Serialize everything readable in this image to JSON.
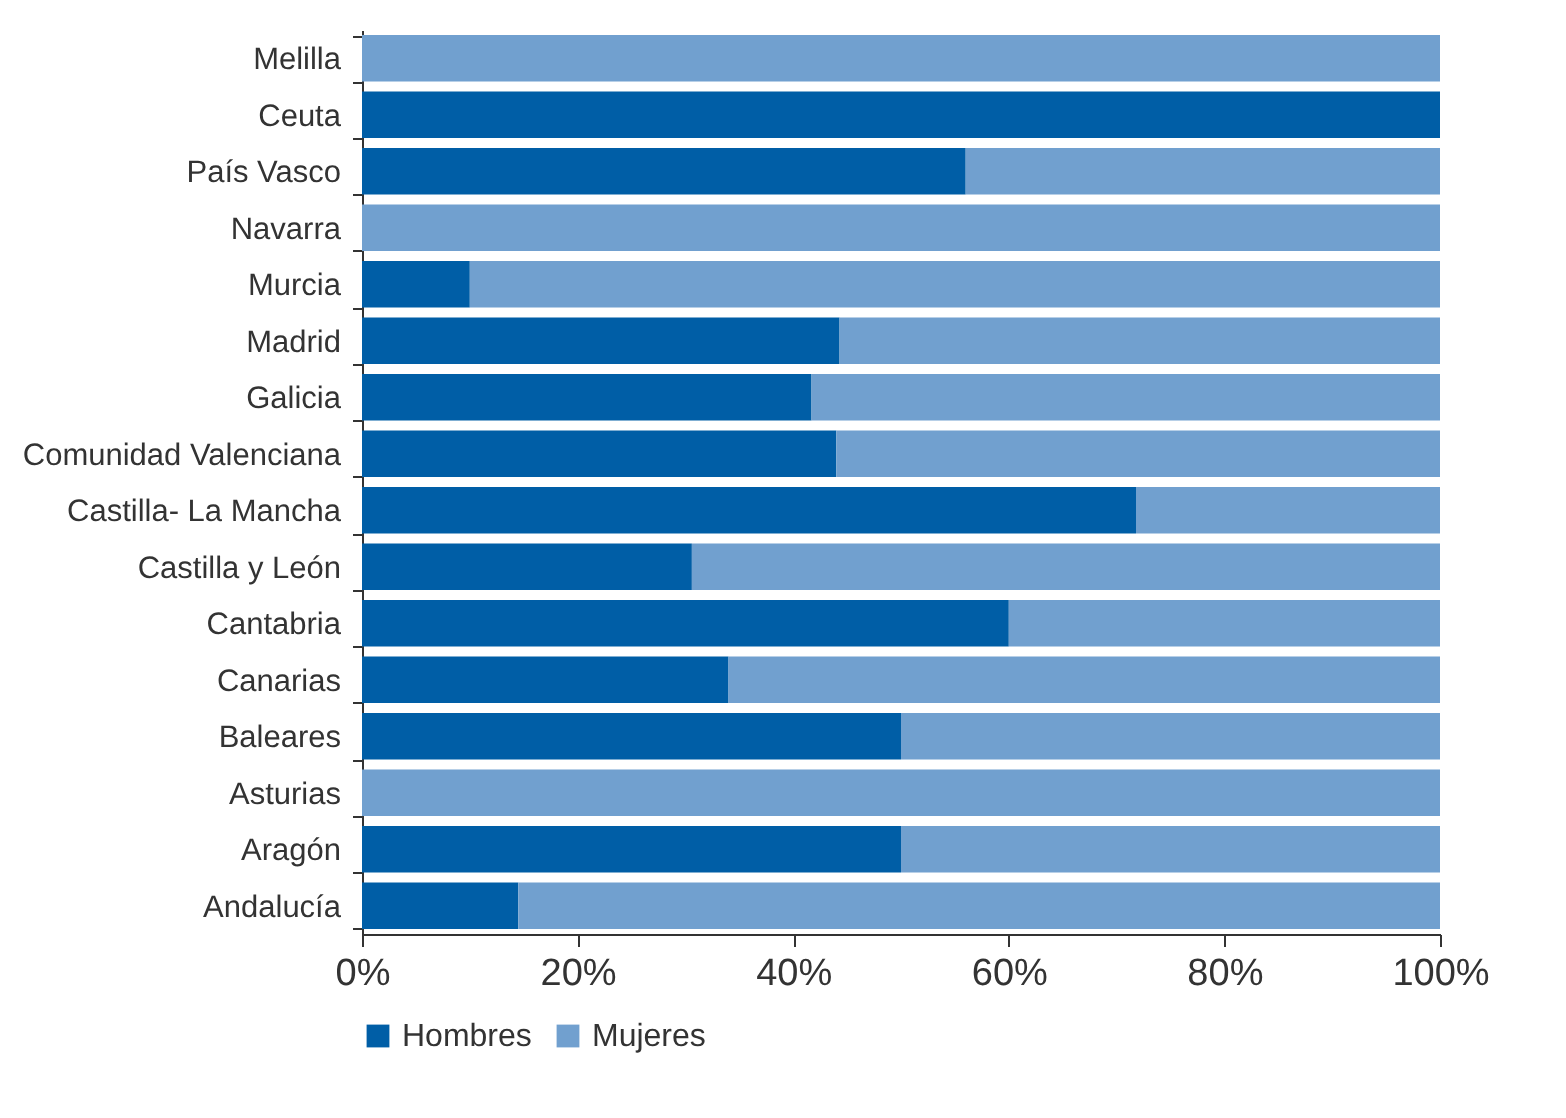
{
  "chart_data": {
    "type": "bar",
    "orientation": "horizontal",
    "stacked": true,
    "categories": [
      "Melilla",
      "Ceuta",
      "País Vasco",
      "Navarra",
      "Murcia",
      "Madrid",
      "Galicia",
      "Comunidad  Valenciana",
      "Castilla- La Mancha",
      "Castilla y León",
      "Cantabria",
      "Canarias",
      "Baleares",
      "Asturias",
      "Aragón",
      "Andalucía"
    ],
    "series": [
      {
        "name": "Hombres",
        "color": "#005ea6",
        "values": [
          0,
          100,
          56,
          0,
          10,
          44.3,
          41.7,
          44,
          71.8,
          30.6,
          60,
          34,
          50,
          0,
          50,
          14.5
        ]
      },
      {
        "name": "Mujeres",
        "color": "#71a0cf",
        "values": [
          100,
          0,
          44,
          100,
          90,
          55.7,
          58.3,
          56,
          28.2,
          69.4,
          40,
          66,
          50,
          100,
          50,
          85.5
        ]
      }
    ],
    "xlim": [
      0,
      100
    ],
    "xticks": [
      {
        "value": 0,
        "label": "0%"
      },
      {
        "value": 20,
        "label": "20%"
      },
      {
        "value": 40,
        "label": "40%"
      },
      {
        "value": 60,
        "label": "60%"
      },
      {
        "value": 80,
        "label": "80%"
      },
      {
        "value": 100,
        "label": "100%"
      }
    ],
    "grid": false,
    "legend": "bottom"
  }
}
